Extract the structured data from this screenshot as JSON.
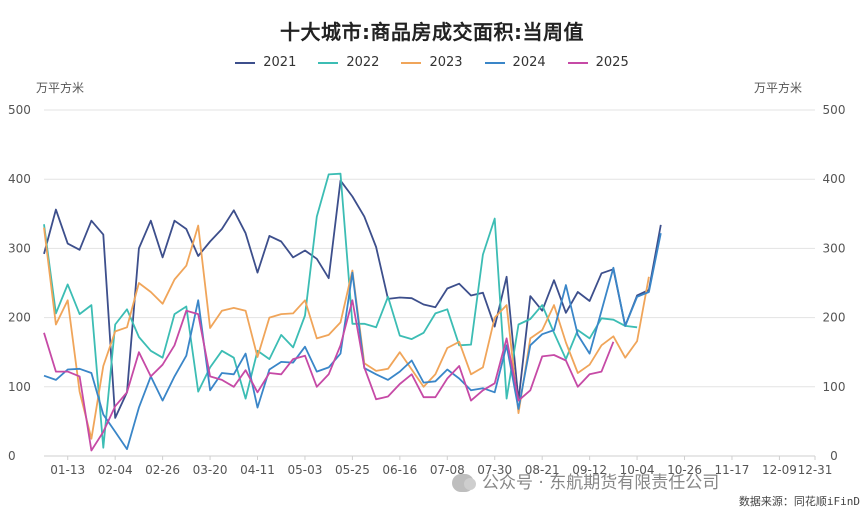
{
  "chart_data": {
    "type": "line",
    "title": "十大城市:商品房成交面积:当周值",
    "ylabel_left": "万平方米",
    "ylabel_right": "万平方米",
    "ylim": [
      0,
      500
    ],
    "yticks": [
      0,
      100,
      200,
      300,
      400,
      500
    ],
    "x_tick_labels": [
      "01-13",
      "02-04",
      "02-26",
      "03-20",
      "04-11",
      "05-03",
      "05-25",
      "06-16",
      "07-08",
      "07-30",
      "08-21",
      "09-12",
      "10-04",
      "10-26",
      "11-17",
      "12-09",
      "12-31"
    ],
    "x_tick_positions": [
      2,
      6,
      10,
      14,
      18,
      22,
      26,
      30,
      34,
      38,
      42,
      46,
      50,
      54,
      58,
      62,
      66
    ],
    "x_count": 66,
    "grid": "horizontal",
    "legend_position": "top-center",
    "series": [
      {
        "name": "2021",
        "color": "#3d4f8c",
        "values": [
          292,
          356,
          307,
          298,
          340,
          320,
          55,
          92,
          300,
          340,
          287,
          340,
          328,
          289,
          310,
          328,
          355,
          322,
          265,
          318,
          310,
          287,
          297,
          285,
          257,
          398,
          375,
          346,
          302,
          227,
          229,
          228,
          219,
          215,
          242,
          249,
          232,
          236,
          187,
          259,
          80,
          231,
          210,
          254,
          207,
          237,
          224,
          264,
          270,
          188,
          232,
          240,
          334
        ]
      },
      {
        "name": "2022",
        "color": "#3cbdb4",
        "values": [
          335,
          206,
          248,
          205,
          218,
          12,
          190,
          212,
          172,
          152,
          142,
          205,
          216,
          93,
          128,
          152,
          142,
          83,
          152,
          140,
          175,
          157,
          203,
          346,
          407,
          408,
          191,
          191,
          186,
          230,
          174,
          169,
          178,
          206,
          212,
          160,
          161,
          291,
          343,
          83,
          190,
          198,
          218,
          178,
          140,
          182,
          170,
          199,
          197,
          188,
          186
        ]
      },
      {
        "name": "2023",
        "color": "#f0a55a",
        "values": [
          330,
          190,
          225,
          93,
          25,
          130,
          180,
          186,
          250,
          237,
          220,
          255,
          275,
          333,
          185,
          210,
          214,
          210,
          143,
          200,
          205,
          206,
          225,
          170,
          175,
          193,
          268,
          134,
          123,
          126,
          150,
          125,
          100,
          118,
          156,
          165,
          118,
          128,
          200,
          218,
          62,
          170,
          182,
          218,
          164,
          120,
          132,
          160,
          173,
          142,
          166,
          259
        ]
      },
      {
        "name": "2024",
        "color": "#3a86c8",
        "values": [
          116,
          110,
          125,
          126,
          120,
          60,
          35,
          10,
          70,
          115,
          80,
          115,
          145,
          225,
          95,
          120,
          118,
          148,
          70,
          125,
          136,
          135,
          158,
          122,
          128,
          148,
          265,
          127,
          118,
          110,
          122,
          138,
          106,
          108,
          125,
          112,
          95,
          98,
          92,
          160,
          68,
          160,
          176,
          182,
          247,
          175,
          148,
          210,
          272,
          188,
          230,
          237,
          322
        ]
      },
      {
        "name": "2025",
        "color": "#c64aa6",
        "values": [
          178,
          122,
          122,
          115,
          8,
          35,
          72,
          92,
          150,
          115,
          132,
          160,
          210,
          205,
          115,
          110,
          100,
          124,
          92,
          120,
          118,
          140,
          145,
          100,
          118,
          160,
          225,
          128,
          82,
          86,
          104,
          118,
          85,
          85,
          112,
          130,
          80,
          95,
          105,
          170,
          80,
          95,
          144,
          146,
          138,
          100,
          118,
          122,
          165
        ]
      }
    ]
  },
  "legend": {
    "items": [
      "2021",
      "2022",
      "2023",
      "2024",
      "2025"
    ]
  },
  "units": {
    "left": "万平方米",
    "right": "万平方米"
  },
  "watermark": "公众号 · 东航期货有限责任公司",
  "source": "数据来源：同花顺iFinD"
}
